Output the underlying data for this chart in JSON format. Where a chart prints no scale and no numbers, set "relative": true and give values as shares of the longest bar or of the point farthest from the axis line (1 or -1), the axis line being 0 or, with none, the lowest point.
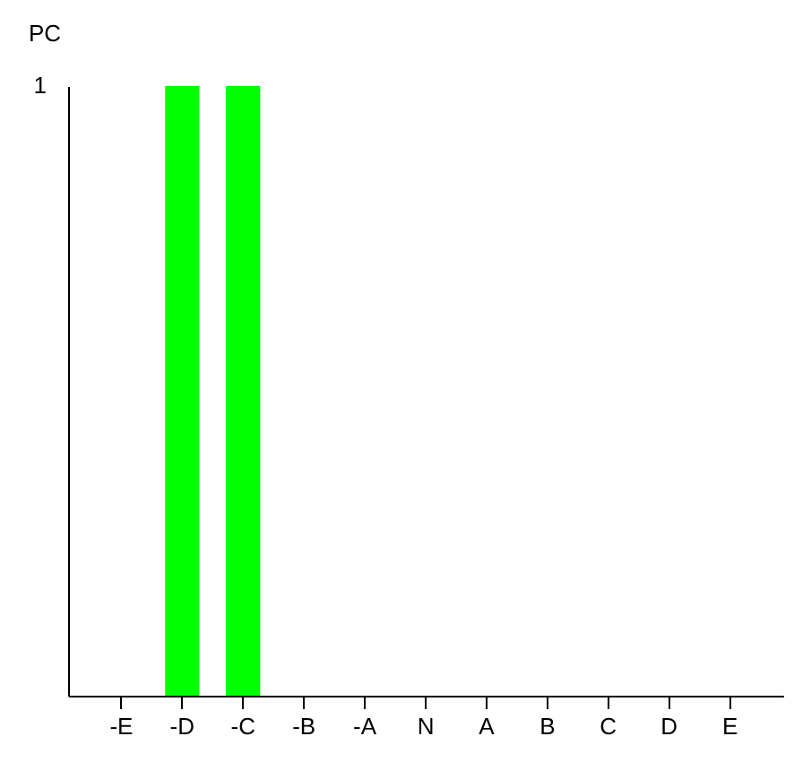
{
  "chart_data": {
    "type": "bar",
    "ylabel": "PC",
    "relative": true,
    "annotations": [
      "1"
    ],
    "categories": [
      "-E",
      "-D",
      "-C",
      "-B",
      "-A",
      "N",
      "A",
      "B",
      "C",
      "D",
      "E"
    ],
    "series": [
      {
        "color": "#00ff00",
        "values": [
          0,
          1,
          1,
          0,
          0,
          0,
          0,
          0,
          0,
          0,
          0
        ]
      }
    ],
    "grid": false,
    "legend": false
  }
}
